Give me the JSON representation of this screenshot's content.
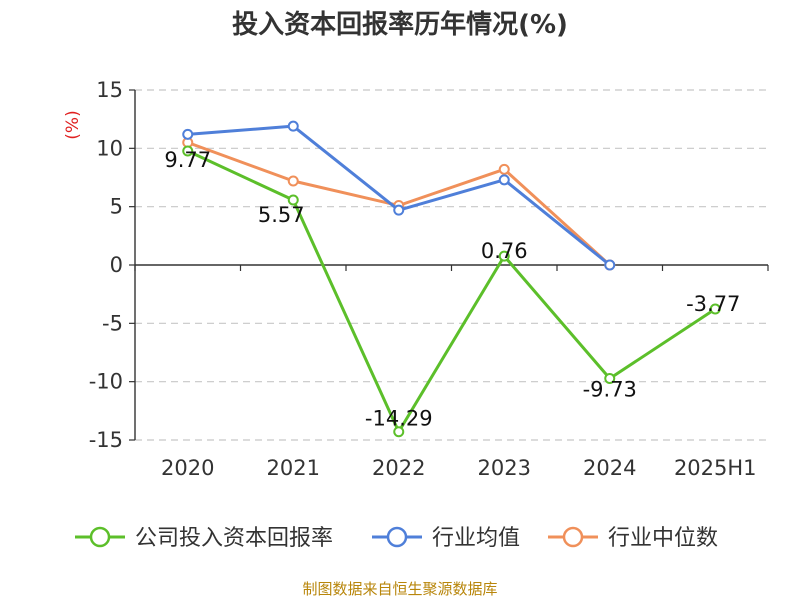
{
  "chart_data": {
    "type": "line",
    "title": "投入资本回报率历年情况(%)",
    "ylabel": "(%)",
    "categories": [
      "2020",
      "2021",
      "2022",
      "2023",
      "2024",
      "2025H1"
    ],
    "ylim": [
      -15,
      15
    ],
    "yticks": [
      -15,
      -10,
      -5,
      0,
      5,
      10,
      15
    ],
    "grid": true,
    "legend_position": "bottom",
    "series": [
      {
        "name": "公司投入资本回报率",
        "color": "#5cbf2a",
        "values": [
          9.77,
          5.57,
          -14.29,
          0.76,
          -9.73,
          -3.77
        ],
        "labels": [
          "9.77",
          "5.57",
          "-14.29",
          "0.76",
          "-9.73",
          "-3.77"
        ]
      },
      {
        "name": "行业均值",
        "color": "#4f7fd9",
        "values": [
          11.2,
          11.9,
          4.7,
          7.3,
          0.0,
          null
        ]
      },
      {
        "name": "行业中位数",
        "color": "#f0905a",
        "values": [
          10.5,
          7.2,
          5.1,
          8.2,
          0.0,
          null
        ]
      }
    ]
  },
  "source": "制图数据来自恒生聚源数据库"
}
